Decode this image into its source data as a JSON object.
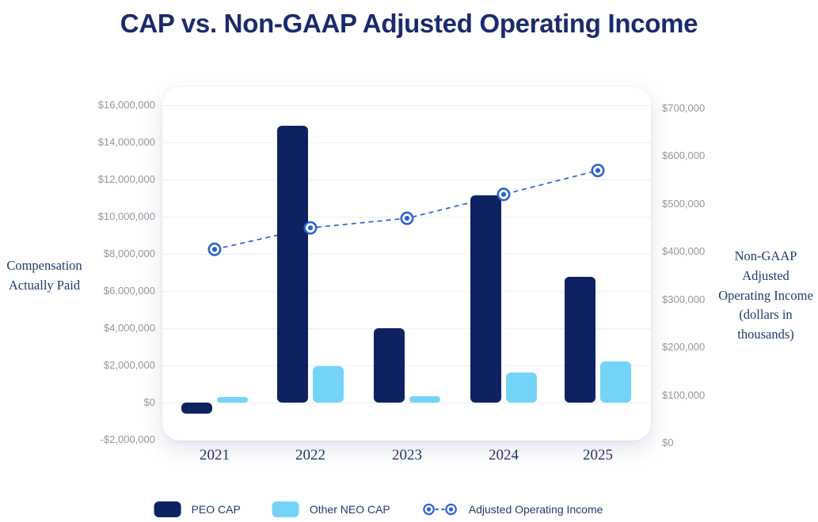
{
  "title": "CAP vs. Non-GAAP Adjusted Operating Income",
  "left_axis": {
    "title_lines": [
      "Compensation",
      "Actually Paid"
    ],
    "ticks": [
      "$16,000,000",
      "$14,000,000",
      "$12,000,000",
      "$10,000,000",
      "$8,000,000",
      "$6,000,000",
      "$4,000,000",
      "$2,000,000",
      "$0",
      "-$2,000,000"
    ]
  },
  "right_axis": {
    "title_lines": [
      "Non-GAAP",
      "Adjusted",
      "Operating Income",
      "(dollars in",
      "thousands)"
    ],
    "ticks": [
      "$700,000",
      "$600,000",
      "$500,000",
      "$400,000",
      "$300,000",
      "$200,000",
      "$100,000",
      "$0"
    ]
  },
  "legend": {
    "items": [
      {
        "label": "PEO CAP",
        "type": "bar",
        "color": "#0e2160"
      },
      {
        "label": "Other NEO CAP",
        "type": "bar",
        "color": "#74d4f8"
      },
      {
        "label": "Adjusted Operating Income",
        "type": "line",
        "color": "#2a63d4"
      }
    ]
  },
  "colors": {
    "navy": "#0e2160",
    "light_blue": "#74d4f8",
    "line_blue": "#2a63d4",
    "title_navy": "#1b2a6c",
    "axis_tick_gray": "#94959c",
    "axis_title_navy": "#1e3a6e",
    "gridline": "#edeef3",
    "background": "#ffffff"
  },
  "chart_data": {
    "type": "bar+line combo",
    "title": "CAP vs. Non-GAAP Adjusted Operating Income",
    "categories": [
      "2021",
      "2022",
      "2023",
      "2024",
      "2025"
    ],
    "series": [
      {
        "name": "PEO CAP",
        "type": "bar",
        "axis": "left",
        "color": "#0e2160",
        "values": [
          -600000,
          14900000,
          4000000,
          11150000,
          6750000
        ]
      },
      {
        "name": "Other NEO CAP",
        "type": "bar",
        "axis": "left",
        "color": "#74d4f8",
        "values": [
          300000,
          1950000,
          350000,
          1600000,
          2200000
        ]
      },
      {
        "name": "Adjusted Operating Income",
        "type": "line",
        "axis": "right",
        "color": "#2a63d4",
        "line_style": "dashed",
        "marker": "bullseye",
        "values": [
          405000,
          450000,
          470000,
          520000,
          570000
        ]
      }
    ],
    "left_axis_title": "Compensation Actually Paid",
    "right_axis_title": "Non-GAAP Adjusted Operating Income (dollars in thousands)",
    "left_axis_range": [
      -2000000,
      16000000
    ],
    "left_axis_tick_step": 2000000,
    "right_axis_range": [
      0,
      700000
    ],
    "right_axis_tick_step": 100000,
    "right_axis_units": "dollars in thousands",
    "grid": true,
    "legend_position": "bottom"
  }
}
